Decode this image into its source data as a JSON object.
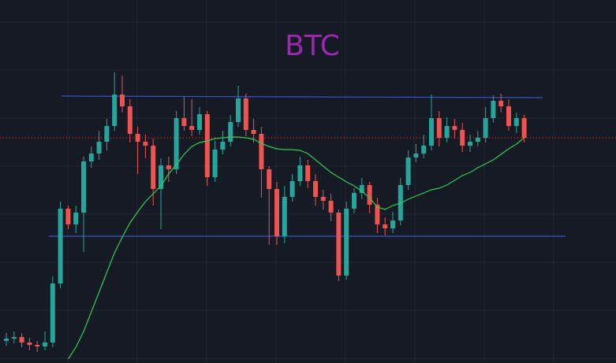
{
  "chart_data": {
    "type": "candlestick",
    "title": "BTC",
    "ylim": [
      0,
      461
    ],
    "up_color": "#26a69a",
    "down_color": "#ef5350",
    "title_color": "#9c27b0",
    "open": [
      28,
      31,
      33,
      26,
      23,
      21,
      26,
      101,
      196,
      176,
      191,
      256,
      266,
      281,
      301,
      341,
      326,
      291,
      281,
      276,
      221,
      251,
      246,
      311,
      301,
      296,
      316,
      236,
      271,
      281,
      306,
      336,
      296,
      291,
      246,
      221,
      161,
      211,
      231,
      251,
      231,
      211,
      206,
      191,
      111,
      196,
      216,
      226,
      201,
      176,
      171,
      181,
      226,
      261,
      266,
      276,
      311,
      286,
      301,
      296,
      276,
      281,
      286,
      311,
      333,
      326,
      301,
      311
    ],
    "high": [
      38,
      40,
      38,
      32,
      28,
      40,
      110,
      205,
      200,
      200,
      262,
      275,
      295,
      310,
      369,
      365,
      335,
      300,
      290,
      285,
      260,
      262,
      320,
      338,
      335,
      325,
      320,
      282,
      295,
      315,
      352,
      342,
      310,
      300,
      250,
      230,
      225,
      240,
      262,
      258,
      240,
      220,
      215,
      195,
      205,
      222,
      235,
      230,
      210,
      185,
      192,
      235,
      270,
      278,
      290,
      341,
      320,
      312,
      310,
      305,
      290,
      295,
      325,
      340,
      342,
      335,
      318,
      315
    ],
    "low": [
      22,
      25,
      20,
      16,
      14,
      16,
      20,
      95,
      170,
      165,
      141,
      248,
      258,
      270,
      295,
      318,
      280,
      240,
      260,
      200,
      170,
      230,
      240,
      295,
      288,
      290,
      225,
      230,
      265,
      275,
      300,
      288,
      280,
      210,
      150,
      150,
      152,
      205,
      225,
      222,
      200,
      195,
      180,
      104,
      106,
      190,
      208,
      190,
      165,
      162,
      165,
      175,
      220,
      255,
      260,
      270,
      275,
      280,
      285,
      268,
      268,
      275,
      280,
      305,
      318,
      295,
      292,
      280
    ],
    "close": [
      31,
      33,
      26,
      23,
      21,
      26,
      101,
      196,
      176,
      191,
      256,
      266,
      281,
      301,
      341,
      326,
      291,
      281,
      276,
      221,
      251,
      246,
      311,
      301,
      296,
      316,
      236,
      271,
      281,
      306,
      336,
      296,
      291,
      246,
      221,
      161,
      211,
      231,
      251,
      231,
      211,
      206,
      191,
      111,
      196,
      216,
      226,
      201,
      176,
      171,
      181,
      226,
      261,
      266,
      276,
      311,
      286,
      301,
      296,
      276,
      281,
      286,
      311,
      333,
      326,
      301,
      311,
      286
    ],
    "moving_average": {
      "color": "#2ecc52",
      "values": [
        null,
        null,
        null,
        null,
        null,
        null,
        null,
        null,
        5,
        20,
        40,
        65,
        90,
        115,
        140,
        160,
        178,
        192,
        205,
        215,
        225,
        240,
        252,
        265,
        275,
        280,
        282,
        285,
        286,
        287,
        287,
        286,
        284,
        279,
        275,
        272,
        271,
        271,
        270,
        266,
        258,
        250,
        242,
        236,
        230,
        225,
        218,
        210,
        198,
        195,
        200,
        203,
        208,
        212,
        216,
        220,
        222,
        226,
        232,
        238,
        242,
        248,
        253,
        258,
        265,
        272,
        278,
        286
      ]
    },
    "levels": [
      {
        "color": "#3556c8",
        "values": [
          339,
          337
        ]
      },
      {
        "color": "#3556c8",
        "values": [
          161,
          161
        ]
      }
    ],
    "price_line": {
      "color": "#ef5350",
      "value": 286
    }
  }
}
